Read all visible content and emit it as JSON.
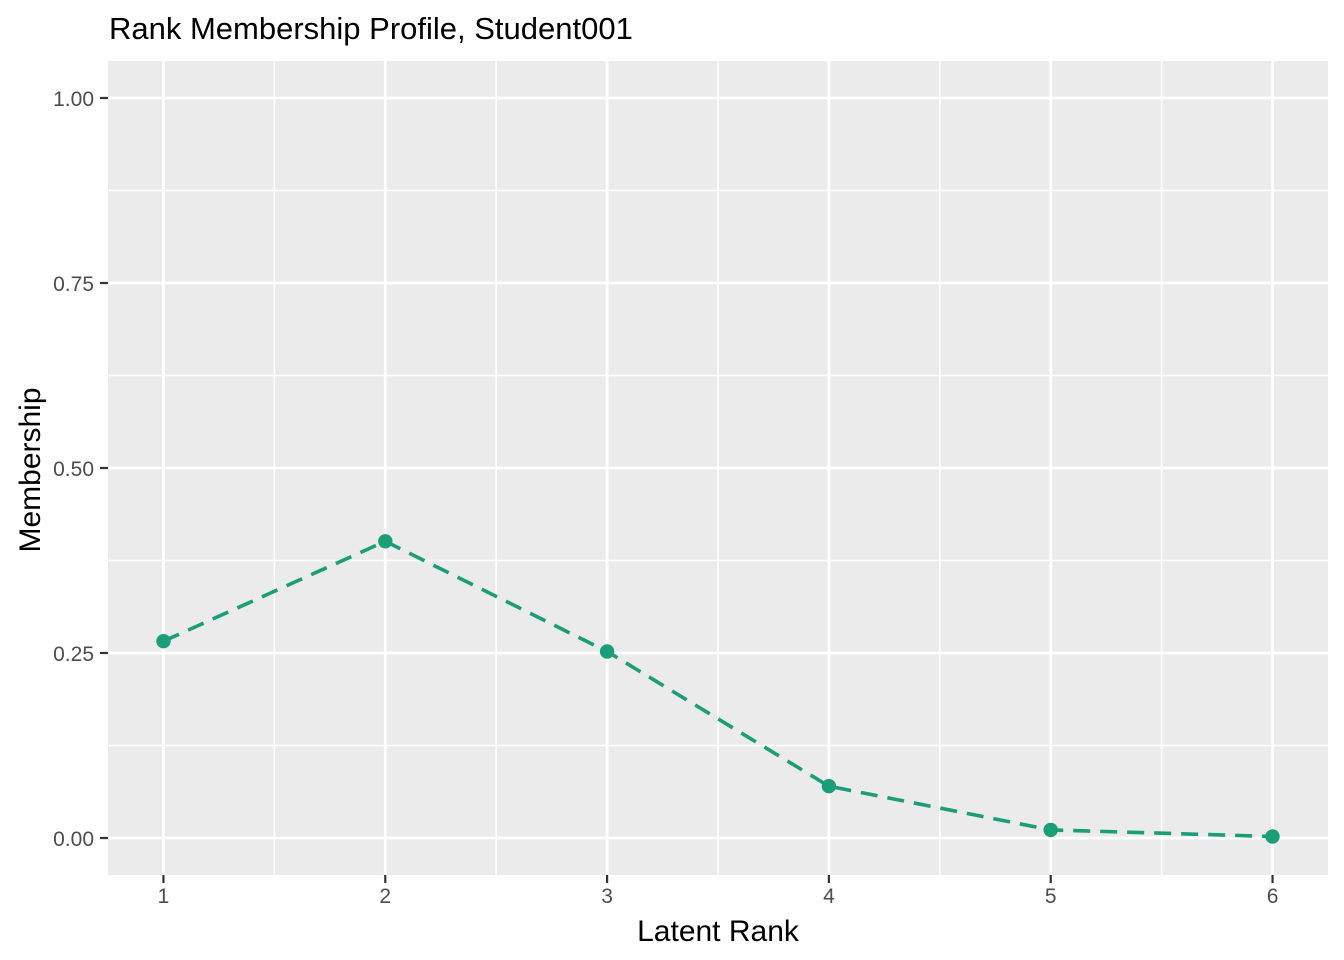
{
  "chart_data": {
    "type": "line",
    "title": "Rank Membership Profile, Student001",
    "xlabel": "Latent Rank",
    "ylabel": "Membership",
    "series": [
      {
        "name": "Student001",
        "x": [
          1,
          2,
          3,
          4,
          5,
          6
        ],
        "y": [
          0.266,
          0.401,
          0.252,
          0.07,
          0.011,
          0.002
        ],
        "line_style": "dashed",
        "marker": "filled-circle",
        "color": "#1b9e77"
      }
    ],
    "x_ticks": [
      1,
      2,
      3,
      4,
      5,
      6
    ],
    "x_tick_labels": [
      "1",
      "2",
      "3",
      "4",
      "5",
      "6"
    ],
    "y_ticks": [
      0,
      0.25,
      0.5,
      0.75,
      1
    ],
    "y_tick_labels": [
      "0.00",
      "0.25",
      "0.50",
      "0.75",
      "1.00"
    ],
    "xlim": [
      0.75,
      6.25
    ],
    "ylim": [
      -0.05,
      1.05
    ],
    "grid": "white major and minor gridlines on grey panel",
    "legend": "none",
    "colors": {
      "panel_background": "#ebebeb",
      "grid": "#ffffff",
      "series": "#1b9e77",
      "tick_label": "#4d4d4d",
      "tick_mark": "#333333",
      "title_text": "#000000",
      "axis_title_text": "#000000",
      "page_background": "#ffffff"
    }
  }
}
